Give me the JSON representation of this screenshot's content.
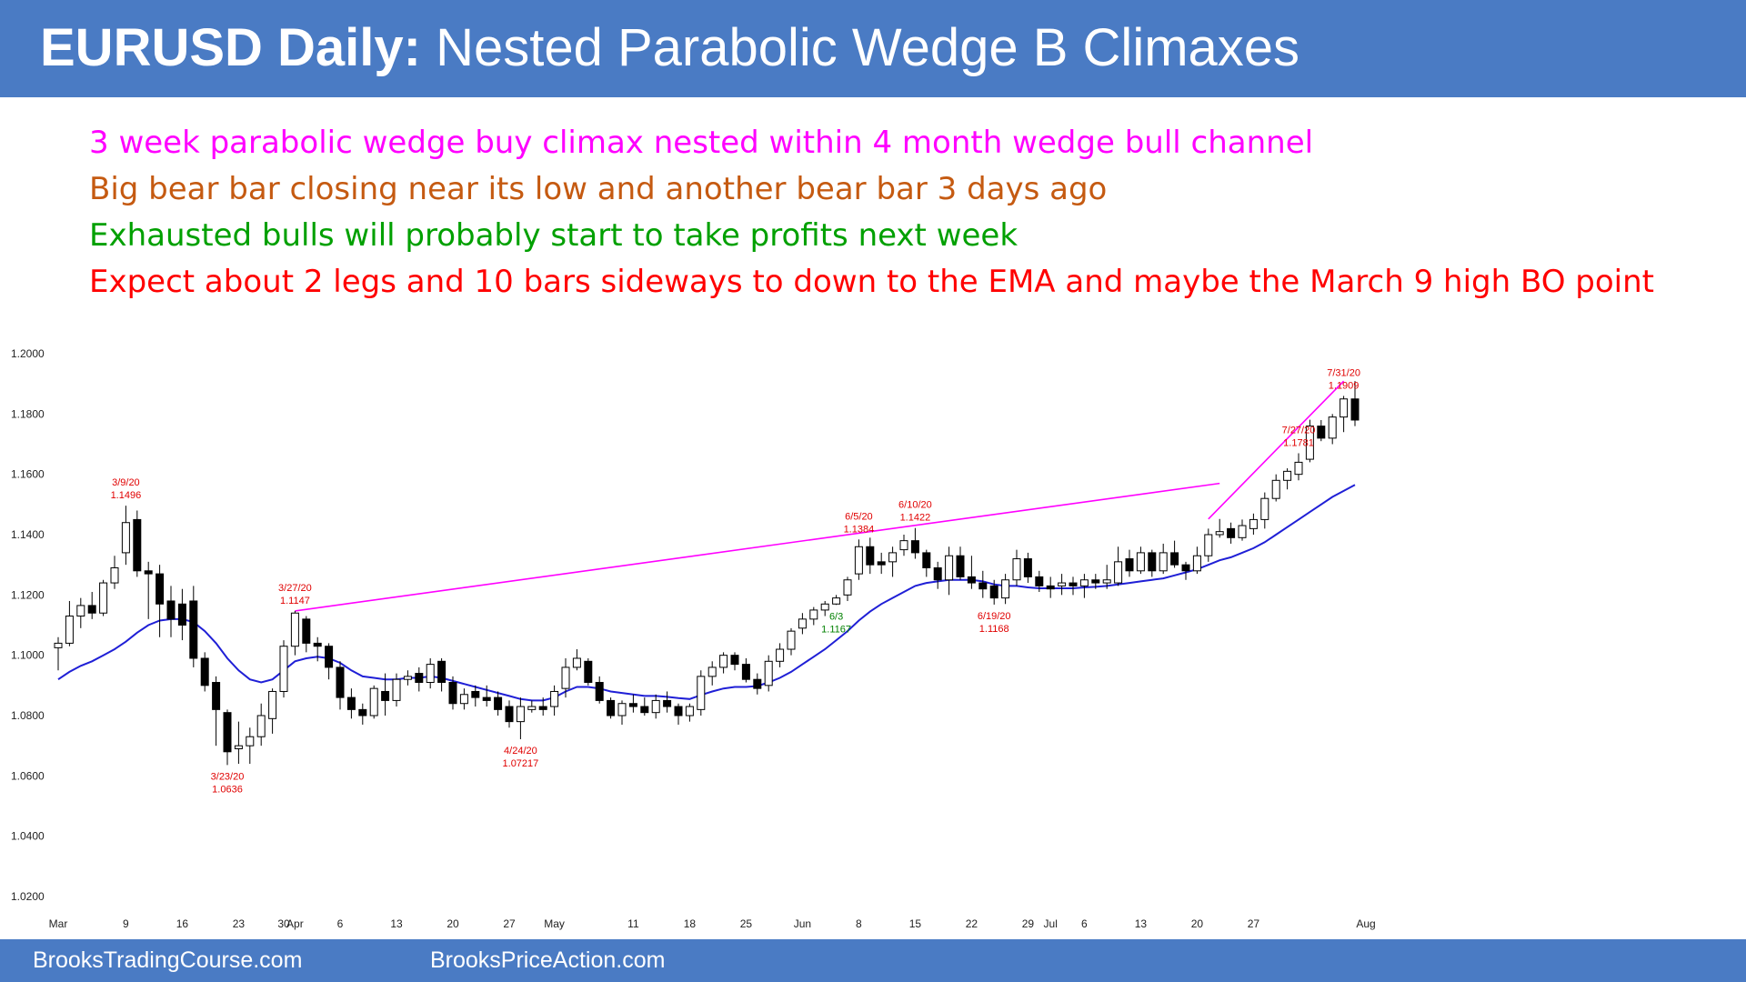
{
  "header": {
    "title_bold": "EURUSD Daily:",
    "title_rest": "Nested Parabolic Wedge B Climaxes"
  },
  "notes": [
    {
      "text": "3 week parabolic wedge buy climax nested within 4 month wedge bull channel",
      "color": "#ff00ff"
    },
    {
      "text": "Big bear bar closing near its low and another bear bar 3 days ago",
      "color": "#c55a11"
    },
    {
      "text": "Exhausted bulls will probably start to take profits next week",
      "color": "#00a000"
    },
    {
      "text": "Expect about 2 legs and 10 bars sideways to down to the EMA and maybe the March 9 high BO point",
      "color": "#ff0000"
    }
  ],
  "footer": {
    "left": "BrooksTradingCourse.com",
    "right": "BrooksPriceAction.com"
  },
  "colors": {
    "accent": "#4a7bc4",
    "ema": "#1f1fd6",
    "trendline": "#ff00ff",
    "label_red": "#e00000",
    "label_green": "#008000",
    "bull_body": "#ffffff",
    "bear_body": "#000000"
  },
  "chart_data": {
    "type": "candlestick",
    "title": "",
    "xlabel": "",
    "ylabel": "",
    "ylim": [
      1.02,
      1.2
    ],
    "y_ticks": [
      "1.0200",
      "1.0400",
      "1.0600",
      "1.0800",
      "1.1000",
      "1.1200",
      "1.1400",
      "1.1600",
      "1.1800",
      "1.2000"
    ],
    "x_ticks": [
      "Mar",
      "9",
      "16",
      "23",
      "30",
      "Apr",
      "6",
      "13",
      "20",
      "27",
      "May",
      "11",
      "18",
      "25",
      "Jun",
      "8",
      "15",
      "22",
      "29",
      "Jul",
      "6",
      "13",
      "20",
      "27",
      "Aug"
    ],
    "candles": [
      {
        "o": 1.1025,
        "h": 1.106,
        "l": 1.095,
        "c": 1.104
      },
      {
        "o": 1.104,
        "h": 1.118,
        "l": 1.103,
        "c": 1.113
      },
      {
        "o": 1.113,
        "h": 1.119,
        "l": 1.109,
        "c": 1.1165
      },
      {
        "o": 1.1165,
        "h": 1.121,
        "l": 1.112,
        "c": 1.114
      },
      {
        "o": 1.114,
        "h": 1.125,
        "l": 1.113,
        "c": 1.124
      },
      {
        "o": 1.124,
        "h": 1.133,
        "l": 1.122,
        "c": 1.129
      },
      {
        "o": 1.134,
        "h": 1.1496,
        "l": 1.13,
        "c": 1.144
      },
      {
        "o": 1.145,
        "h": 1.148,
        "l": 1.126,
        "c": 1.128
      },
      {
        "o": 1.128,
        "h": 1.131,
        "l": 1.112,
        "c": 1.127
      },
      {
        "o": 1.127,
        "h": 1.13,
        "l": 1.106,
        "c": 1.117
      },
      {
        "o": 1.118,
        "h": 1.123,
        "l": 1.106,
        "c": 1.112
      },
      {
        "o": 1.117,
        "h": 1.122,
        "l": 1.105,
        "c": 1.11
      },
      {
        "o": 1.118,
        "h": 1.123,
        "l": 1.096,
        "c": 1.099
      },
      {
        "o": 1.099,
        "h": 1.101,
        "l": 1.088,
        "c": 1.09
      },
      {
        "o": 1.091,
        "h": 1.093,
        "l": 1.07,
        "c": 1.082
      },
      {
        "o": 1.081,
        "h": 1.082,
        "l": 1.0636,
        "c": 1.068
      },
      {
        "o": 1.069,
        "h": 1.078,
        "l": 1.064,
        "c": 1.07
      },
      {
        "o": 1.07,
        "h": 1.076,
        "l": 1.064,
        "c": 1.073
      },
      {
        "o": 1.073,
        "h": 1.084,
        "l": 1.07,
        "c": 1.08
      },
      {
        "o": 1.079,
        "h": 1.089,
        "l": 1.074,
        "c": 1.088
      },
      {
        "o": 1.088,
        "h": 1.105,
        "l": 1.086,
        "c": 1.103
      },
      {
        "o": 1.103,
        "h": 1.1147,
        "l": 1.1,
        "c": 1.114
      },
      {
        "o": 1.112,
        "h": 1.113,
        "l": 1.101,
        "c": 1.104
      },
      {
        "o": 1.104,
        "h": 1.106,
        "l": 1.098,
        "c": 1.103
      },
      {
        "o": 1.103,
        "h": 1.104,
        "l": 1.092,
        "c": 1.096
      },
      {
        "o": 1.096,
        "h": 1.098,
        "l": 1.082,
        "c": 1.086
      },
      {
        "o": 1.086,
        "h": 1.089,
        "l": 1.079,
        "c": 1.082
      },
      {
        "o": 1.082,
        "h": 1.084,
        "l": 1.077,
        "c": 1.08
      },
      {
        "o": 1.08,
        "h": 1.09,
        "l": 1.079,
        "c": 1.089
      },
      {
        "o": 1.088,
        "h": 1.094,
        "l": 1.08,
        "c": 1.085
      },
      {
        "o": 1.085,
        "h": 1.094,
        "l": 1.083,
        "c": 1.092
      },
      {
        "o": 1.092,
        "h": 1.095,
        "l": 1.09,
        "c": 1.093
      },
      {
        "o": 1.094,
        "h": 1.096,
        "l": 1.088,
        "c": 1.091
      },
      {
        "o": 1.091,
        "h": 1.099,
        "l": 1.089,
        "c": 1.097
      },
      {
        "o": 1.098,
        "h": 1.099,
        "l": 1.088,
        "c": 1.091
      },
      {
        "o": 1.091,
        "h": 1.093,
        "l": 1.082,
        "c": 1.084
      },
      {
        "o": 1.084,
        "h": 1.089,
        "l": 1.082,
        "c": 1.087
      },
      {
        "o": 1.088,
        "h": 1.09,
        "l": 1.083,
        "c": 1.086
      },
      {
        "o": 1.086,
        "h": 1.09,
        "l": 1.083,
        "c": 1.085
      },
      {
        "o": 1.086,
        "h": 1.088,
        "l": 1.08,
        "c": 1.082
      },
      {
        "o": 1.083,
        "h": 1.085,
        "l": 1.076,
        "c": 1.078
      },
      {
        "o": 1.078,
        "h": 1.086,
        "l": 1.07217,
        "c": 1.083
      },
      {
        "o": 1.082,
        "h": 1.085,
        "l": 1.081,
        "c": 1.083
      },
      {
        "o": 1.083,
        "h": 1.086,
        "l": 1.08,
        "c": 1.082
      },
      {
        "o": 1.083,
        "h": 1.09,
        "l": 1.08,
        "c": 1.088
      },
      {
        "o": 1.089,
        "h": 1.099,
        "l": 1.086,
        "c": 1.096
      },
      {
        "o": 1.096,
        "h": 1.102,
        "l": 1.095,
        "c": 1.099
      },
      {
        "o": 1.098,
        "h": 1.099,
        "l": 1.09,
        "c": 1.091
      },
      {
        "o": 1.091,
        "h": 1.093,
        "l": 1.084,
        "c": 1.085
      },
      {
        "o": 1.085,
        "h": 1.086,
        "l": 1.079,
        "c": 1.08
      },
      {
        "o": 1.08,
        "h": 1.085,
        "l": 1.077,
        "c": 1.084
      },
      {
        "o": 1.084,
        "h": 1.087,
        "l": 1.081,
        "c": 1.083
      },
      {
        "o": 1.083,
        "h": 1.086,
        "l": 1.08,
        "c": 1.081
      },
      {
        "o": 1.081,
        "h": 1.087,
        "l": 1.079,
        "c": 1.085
      },
      {
        "o": 1.085,
        "h": 1.088,
        "l": 1.081,
        "c": 1.083
      },
      {
        "o": 1.083,
        "h": 1.084,
        "l": 1.077,
        "c": 1.08
      },
      {
        "o": 1.08,
        "h": 1.084,
        "l": 1.078,
        "c": 1.083
      },
      {
        "o": 1.082,
        "h": 1.095,
        "l": 1.08,
        "c": 1.093
      },
      {
        "o": 1.093,
        "h": 1.098,
        "l": 1.09,
        "c": 1.096
      },
      {
        "o": 1.096,
        "h": 1.101,
        "l": 1.094,
        "c": 1.1
      },
      {
        "o": 1.1,
        "h": 1.101,
        "l": 1.095,
        "c": 1.097
      },
      {
        "o": 1.097,
        "h": 1.099,
        "l": 1.091,
        "c": 1.092
      },
      {
        "o": 1.092,
        "h": 1.094,
        "l": 1.087,
        "c": 1.089
      },
      {
        "o": 1.09,
        "h": 1.1,
        "l": 1.088,
        "c": 1.098
      },
      {
        "o": 1.098,
        "h": 1.104,
        "l": 1.096,
        "c": 1.102
      },
      {
        "o": 1.102,
        "h": 1.109,
        "l": 1.1,
        "c": 1.108
      },
      {
        "o": 1.109,
        "h": 1.114,
        "l": 1.107,
        "c": 1.112
      },
      {
        "o": 1.112,
        "h": 1.116,
        "l": 1.11,
        "c": 1.115
      },
      {
        "o": 1.115,
        "h": 1.118,
        "l": 1.113,
        "c": 1.117
      },
      {
        "o": 1.117,
        "h": 1.12,
        "l": 1.1167,
        "c": 1.119
      },
      {
        "o": 1.12,
        "h": 1.126,
        "l": 1.118,
        "c": 1.125
      },
      {
        "o": 1.127,
        "h": 1.1384,
        "l": 1.125,
        "c": 1.136
      },
      {
        "o": 1.136,
        "h": 1.139,
        "l": 1.127,
        "c": 1.13
      },
      {
        "o": 1.131,
        "h": 1.134,
        "l": 1.127,
        "c": 1.13
      },
      {
        "o": 1.131,
        "h": 1.136,
        "l": 1.126,
        "c": 1.134
      },
      {
        "o": 1.135,
        "h": 1.14,
        "l": 1.133,
        "c": 1.138
      },
      {
        "o": 1.138,
        "h": 1.1422,
        "l": 1.132,
        "c": 1.134
      },
      {
        "o": 1.134,
        "h": 1.135,
        "l": 1.126,
        "c": 1.129
      },
      {
        "o": 1.129,
        "h": 1.131,
        "l": 1.122,
        "c": 1.125
      },
      {
        "o": 1.125,
        "h": 1.136,
        "l": 1.12,
        "c": 1.133
      },
      {
        "o": 1.133,
        "h": 1.136,
        "l": 1.125,
        "c": 1.126
      },
      {
        "o": 1.126,
        "h": 1.133,
        "l": 1.122,
        "c": 1.124
      },
      {
        "o": 1.124,
        "h": 1.128,
        "l": 1.119,
        "c": 1.122
      },
      {
        "o": 1.123,
        "h": 1.125,
        "l": 1.1168,
        "c": 1.119
      },
      {
        "o": 1.119,
        "h": 1.127,
        "l": 1.117,
        "c": 1.125
      },
      {
        "o": 1.125,
        "h": 1.135,
        "l": 1.123,
        "c": 1.132
      },
      {
        "o": 1.132,
        "h": 1.134,
        "l": 1.124,
        "c": 1.126
      },
      {
        "o": 1.126,
        "h": 1.128,
        "l": 1.121,
        "c": 1.123
      },
      {
        "o": 1.123,
        "h": 1.126,
        "l": 1.119,
        "c": 1.122
      },
      {
        "o": 1.123,
        "h": 1.127,
        "l": 1.12,
        "c": 1.124
      },
      {
        "o": 1.124,
        "h": 1.126,
        "l": 1.12,
        "c": 1.123
      },
      {
        "o": 1.123,
        "h": 1.127,
        "l": 1.119,
        "c": 1.125
      },
      {
        "o": 1.125,
        "h": 1.127,
        "l": 1.122,
        "c": 1.124
      },
      {
        "o": 1.124,
        "h": 1.13,
        "l": 1.122,
        "c": 1.125
      },
      {
        "o": 1.124,
        "h": 1.136,
        "l": 1.123,
        "c": 1.131
      },
      {
        "o": 1.132,
        "h": 1.135,
        "l": 1.126,
        "c": 1.128
      },
      {
        "o": 1.128,
        "h": 1.136,
        "l": 1.127,
        "c": 1.134
      },
      {
        "o": 1.134,
        "h": 1.135,
        "l": 1.126,
        "c": 1.128
      },
      {
        "o": 1.128,
        "h": 1.137,
        "l": 1.127,
        "c": 1.134
      },
      {
        "o": 1.134,
        "h": 1.138,
        "l": 1.129,
        "c": 1.13
      },
      {
        "o": 1.13,
        "h": 1.131,
        "l": 1.125,
        "c": 1.128
      },
      {
        "o": 1.128,
        "h": 1.136,
        "l": 1.127,
        "c": 1.133
      },
      {
        "o": 1.133,
        "h": 1.142,
        "l": 1.131,
        "c": 1.14
      },
      {
        "o": 1.14,
        "h": 1.1452,
        "l": 1.139,
        "c": 1.141
      },
      {
        "o": 1.142,
        "h": 1.144,
        "l": 1.137,
        "c": 1.139
      },
      {
        "o": 1.139,
        "h": 1.145,
        "l": 1.138,
        "c": 1.143
      },
      {
        "o": 1.142,
        "h": 1.147,
        "l": 1.14,
        "c": 1.145
      },
      {
        "o": 1.145,
        "h": 1.154,
        "l": 1.142,
        "c": 1.152
      },
      {
        "o": 1.152,
        "h": 1.16,
        "l": 1.151,
        "c": 1.158
      },
      {
        "o": 1.158,
        "h": 1.162,
        "l": 1.155,
        "c": 1.161
      },
      {
        "o": 1.16,
        "h": 1.167,
        "l": 1.158,
        "c": 1.164
      },
      {
        "o": 1.165,
        "h": 1.1781,
        "l": 1.164,
        "c": 1.176
      },
      {
        "o": 1.176,
        "h": 1.178,
        "l": 1.171,
        "c": 1.172
      },
      {
        "o": 1.172,
        "h": 1.18,
        "l": 1.17,
        "c": 1.179
      },
      {
        "o": 1.179,
        "h": 1.186,
        "l": 1.174,
        "c": 1.185
      },
      {
        "o": 1.185,
        "h": 1.1909,
        "l": 1.176,
        "c": 1.178
      }
    ],
    "ema": [
      1.092,
      1.0945,
      1.0965,
      1.098,
      1.1,
      1.102,
      1.1045,
      1.1075,
      1.11,
      1.1115,
      1.112,
      1.112,
      1.111,
      1.108,
      1.104,
      1.099,
      1.095,
      1.092,
      1.091,
      1.092,
      1.095,
      1.098,
      1.099,
      1.0995,
      1.099,
      1.0975,
      1.095,
      1.093,
      1.0925,
      1.092,
      1.092,
      1.0925,
      1.0925,
      1.093,
      1.0925,
      1.0915,
      1.0905,
      1.0895,
      1.0885,
      1.0875,
      1.0865,
      1.0855,
      1.085,
      1.085,
      1.086,
      1.088,
      1.0895,
      1.0895,
      1.089,
      1.088,
      1.0875,
      1.087,
      1.0865,
      1.0865,
      1.0862,
      1.0858,
      1.0855,
      1.0868,
      1.088,
      1.089,
      1.0895,
      1.0895,
      1.0898,
      1.091,
      1.0925,
      1.0945,
      1.097,
      1.0995,
      1.102,
      1.105,
      1.108,
      1.1115,
      1.1145,
      1.117,
      1.119,
      1.121,
      1.123,
      1.124,
      1.1245,
      1.125,
      1.125,
      1.125,
      1.1245,
      1.1235,
      1.123,
      1.123,
      1.1225,
      1.1222,
      1.1222,
      1.1222,
      1.1222,
      1.1225,
      1.1227,
      1.123,
      1.1235,
      1.124,
      1.1245,
      1.125,
      1.1255,
      1.1265,
      1.1275,
      1.1285,
      1.13,
      1.1315,
      1.1325,
      1.134,
      1.1355,
      1.1375,
      1.14,
      1.1425,
      1.145,
      1.1475,
      1.15,
      1.1525,
      1.1545,
      1.1565
    ],
    "trendlines": [
      {
        "from": [
          21,
          1.1147
        ],
        "to": [
          103,
          1.157
        ]
      },
      {
        "from": [
          102,
          1.1452
        ],
        "to": [
          114,
          1.1909
        ]
      }
    ],
    "annotations": [
      {
        "idx": 6,
        "date": "3/9/20",
        "price": "1.1496",
        "pos": "above",
        "color": "red"
      },
      {
        "idx": 15,
        "date": "3/23/20",
        "price": "1.0636",
        "pos": "below",
        "color": "red"
      },
      {
        "idx": 21,
        "date": "3/27/20",
        "price": "1.1147",
        "pos": "above",
        "color": "red"
      },
      {
        "idx": 41,
        "date": "4/24/20",
        "price": "1.07217",
        "pos": "below",
        "color": "red"
      },
      {
        "idx": 69,
        "date": "6/3",
        "price": "1.1167",
        "pos": "below",
        "color": "green"
      },
      {
        "idx": 71,
        "date": "6/5/20",
        "price": "1.1384",
        "pos": "above",
        "color": "red"
      },
      {
        "idx": 76,
        "date": "6/10/20",
        "price": "1.1422",
        "pos": "above",
        "color": "red"
      },
      {
        "idx": 83,
        "date": "6/19/20",
        "price": "1.1168",
        "pos": "below",
        "color": "red"
      },
      {
        "idx": 110,
        "date": "7/27/20",
        "price": "1.1781",
        "pos": "above",
        "color": "red"
      },
      {
        "idx": 114,
        "date": "7/31/20",
        "price": "1.1909",
        "pos": "above",
        "color": "red"
      }
    ]
  }
}
